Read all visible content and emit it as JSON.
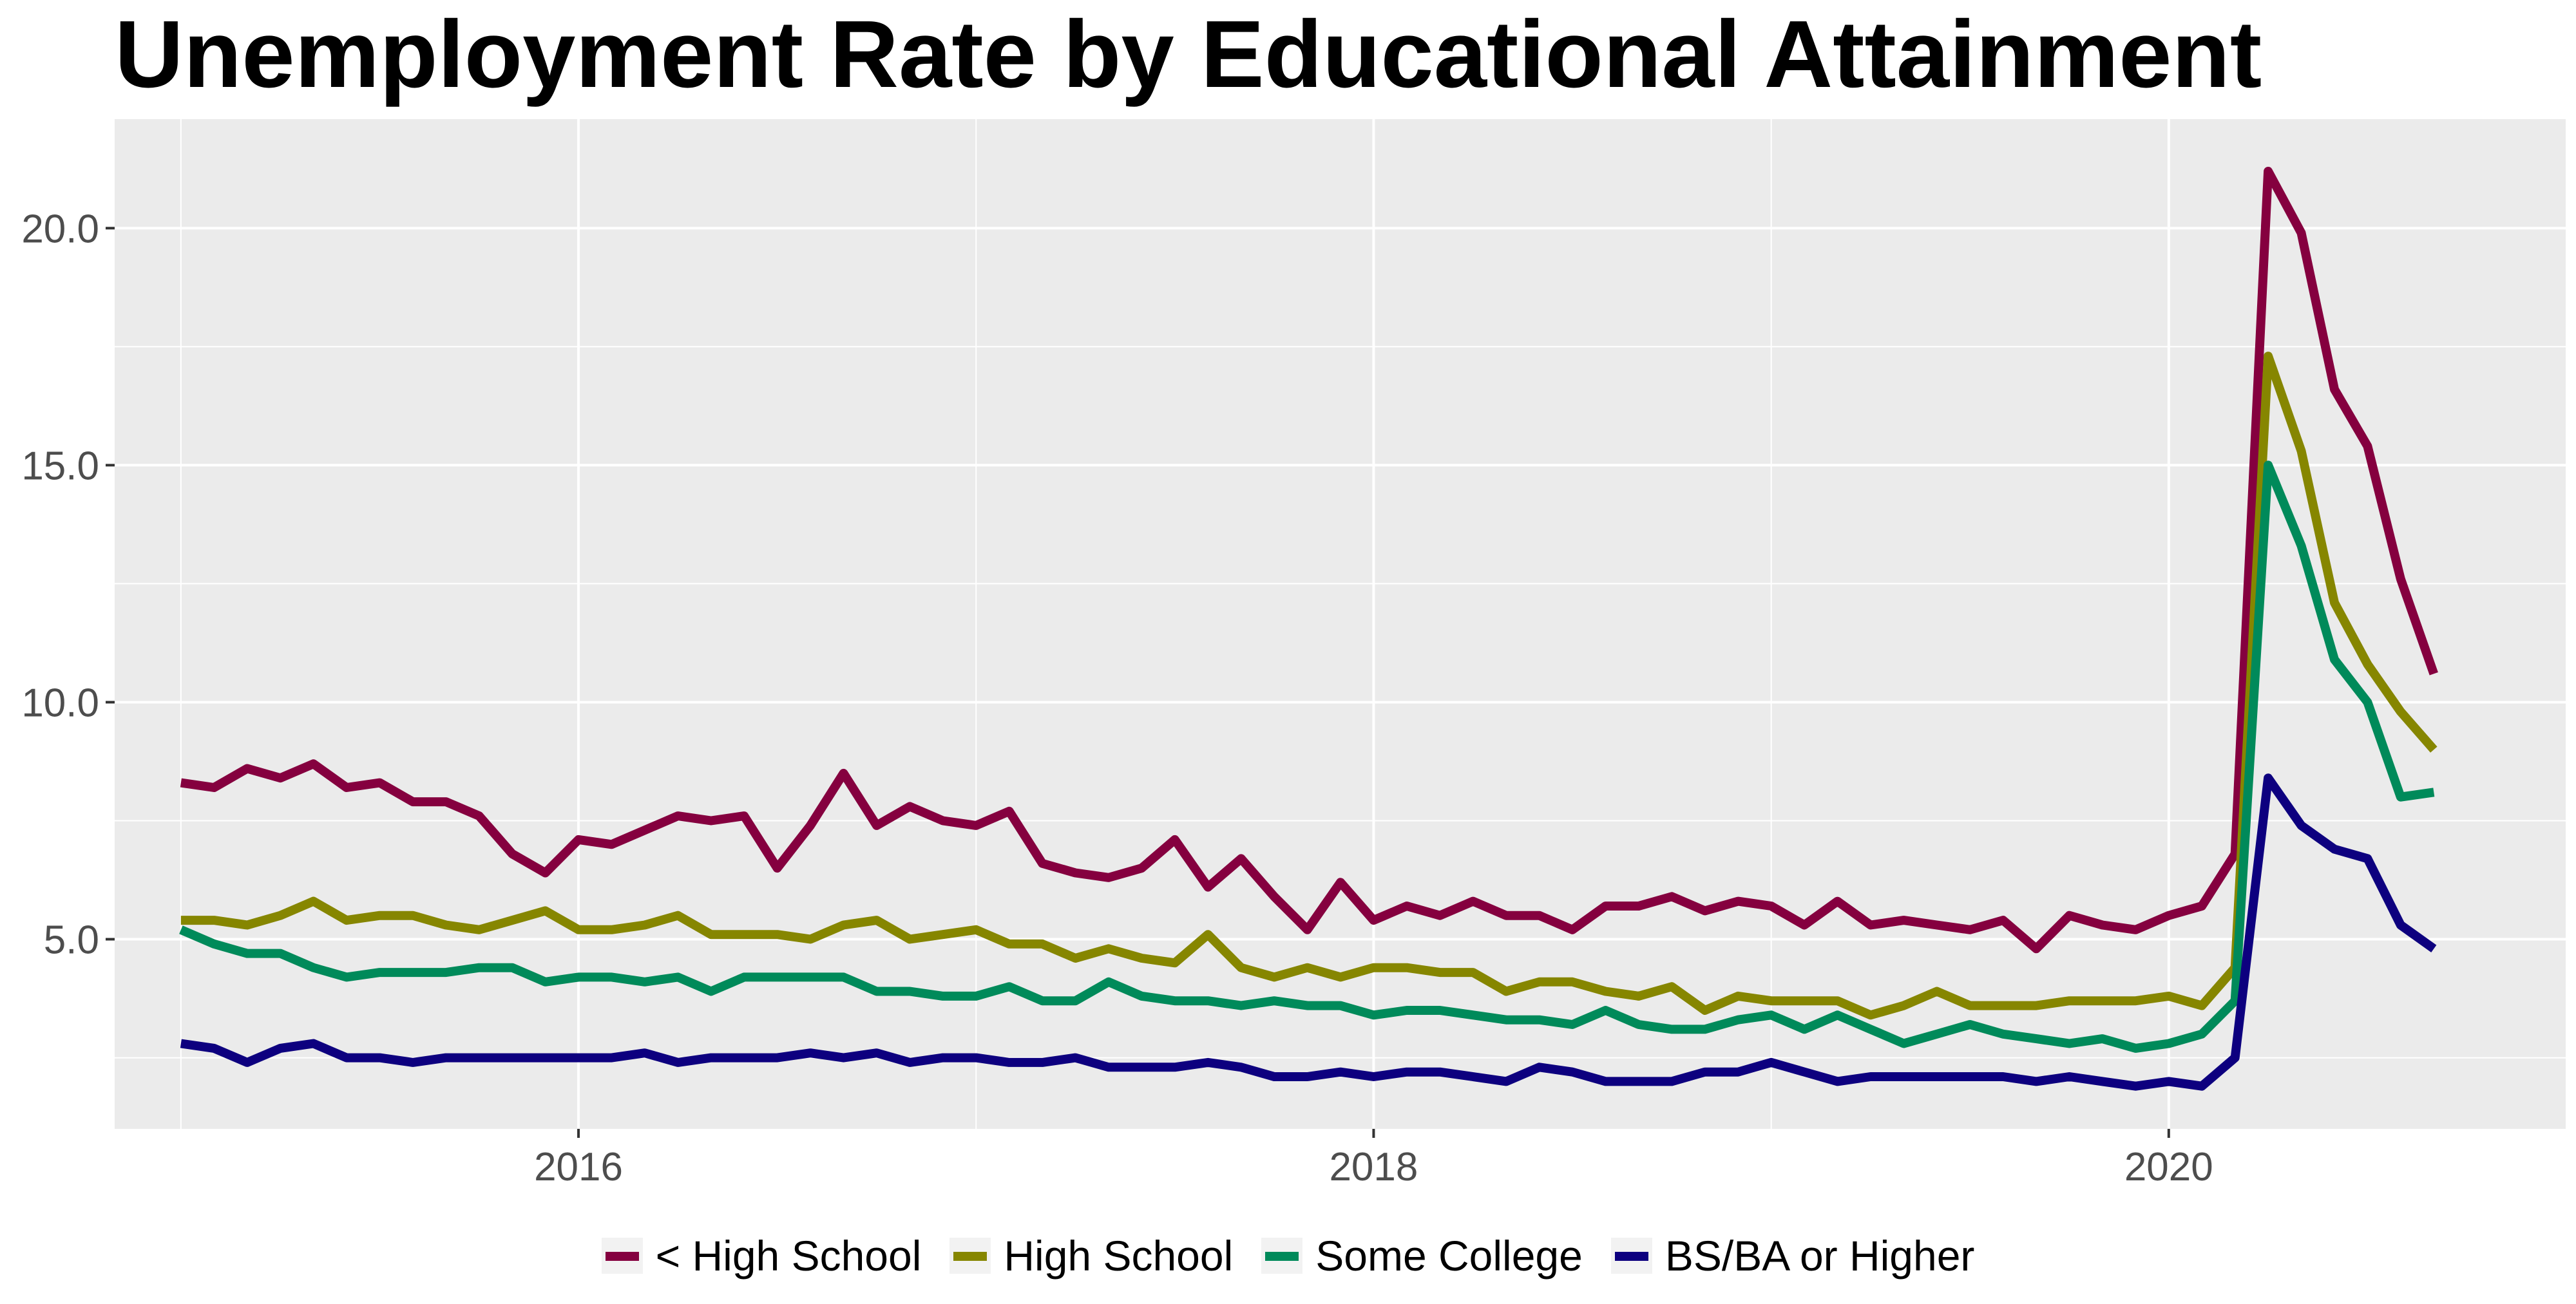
{
  "chart_data": {
    "type": "line",
    "title": "Unemployment Rate by Educational Attainment",
    "xlabel": "",
    "ylabel": "",
    "x_ticks": [
      "2016",
      "2018",
      "2020"
    ],
    "y_ticks": [
      "5.0",
      "10.0",
      "15.0",
      "20.0"
    ],
    "xlim": [
      "2014-11",
      "2021-01"
    ],
    "ylim": [
      1.0,
      22.3
    ],
    "grid": true,
    "legend_position": "bottom",
    "x": [
      "2015-01",
      "2015-02",
      "2015-03",
      "2015-04",
      "2015-05",
      "2015-06",
      "2015-07",
      "2015-08",
      "2015-09",
      "2015-10",
      "2015-11",
      "2015-12",
      "2016-01",
      "2016-02",
      "2016-03",
      "2016-04",
      "2016-05",
      "2016-06",
      "2016-07",
      "2016-08",
      "2016-09",
      "2016-10",
      "2016-11",
      "2016-12",
      "2017-01",
      "2017-02",
      "2017-03",
      "2017-04",
      "2017-05",
      "2017-06",
      "2017-07",
      "2017-08",
      "2017-09",
      "2017-10",
      "2017-11",
      "2017-12",
      "2018-01",
      "2018-02",
      "2018-03",
      "2018-04",
      "2018-05",
      "2018-06",
      "2018-07",
      "2018-08",
      "2018-09",
      "2018-10",
      "2018-11",
      "2018-12",
      "2019-01",
      "2019-02",
      "2019-03",
      "2019-04",
      "2019-05",
      "2019-06",
      "2019-07",
      "2019-08",
      "2019-09",
      "2019-10",
      "2019-11",
      "2019-12",
      "2020-01",
      "2020-02",
      "2020-03",
      "2020-04",
      "2020-05",
      "2020-06",
      "2020-07",
      "2020-08",
      "2020-09",
      "2020-10"
    ],
    "series": [
      {
        "name": "< High School",
        "color": "#85003f",
        "values": [
          8.3,
          8.2,
          8.6,
          8.4,
          8.7,
          8.2,
          8.3,
          7.9,
          7.9,
          7.6,
          6.8,
          6.4,
          7.1,
          7.0,
          7.3,
          7.6,
          7.5,
          7.6,
          6.5,
          7.4,
          8.5,
          7.4,
          7.8,
          7.5,
          7.4,
          7.7,
          6.6,
          6.4,
          6.3,
          6.5,
          7.1,
          6.1,
          6.7,
          5.9,
          5.2,
          6.2,
          5.4,
          5.7,
          5.5,
          5.8,
          5.5,
          5.5,
          5.2,
          5.7,
          5.7,
          5.9,
          5.6,
          5.8,
          5.7,
          5.3,
          5.8,
          5.3,
          5.4,
          5.3,
          5.2,
          5.4,
          4.8,
          5.5,
          5.3,
          5.2,
          5.5,
          5.7,
          6.8,
          21.2,
          19.9,
          16.6,
          15.4,
          12.6,
          10.6,
          null
        ]
      },
      {
        "name": "High School",
        "color": "#868600",
        "values": [
          5.4,
          5.4,
          5.3,
          5.5,
          5.8,
          5.4,
          5.5,
          5.5,
          5.3,
          5.2,
          5.4,
          5.6,
          5.2,
          5.2,
          5.3,
          5.5,
          5.1,
          5.1,
          5.1,
          5.0,
          5.3,
          5.4,
          5.0,
          5.1,
          5.2,
          4.9,
          4.9,
          4.6,
          4.8,
          4.6,
          4.5,
          5.1,
          4.4,
          4.2,
          4.4,
          4.2,
          4.4,
          4.4,
          4.3,
          4.3,
          3.9,
          4.1,
          4.1,
          3.9,
          3.8,
          4.0,
          3.5,
          3.8,
          3.7,
          3.7,
          3.7,
          3.4,
          3.6,
          3.9,
          3.6,
          3.6,
          3.6,
          3.7,
          3.7,
          3.7,
          3.8,
          3.6,
          4.4,
          17.3,
          15.3,
          12.1,
          10.8,
          9.8,
          9.0,
          null
        ]
      },
      {
        "name": "Some College",
        "color": "#008a5a",
        "values": [
          5.2,
          4.9,
          4.7,
          4.7,
          4.4,
          4.2,
          4.3,
          4.3,
          4.3,
          4.4,
          4.4,
          4.1,
          4.2,
          4.2,
          4.1,
          4.2,
          3.9,
          4.2,
          4.2,
          4.2,
          4.2,
          3.9,
          3.9,
          3.8,
          3.8,
          4.0,
          3.7,
          3.7,
          4.1,
          3.8,
          3.7,
          3.7,
          3.6,
          3.7,
          3.6,
          3.6,
          3.4,
          3.5,
          3.5,
          3.4,
          3.3,
          3.3,
          3.2,
          3.5,
          3.2,
          3.1,
          3.1,
          3.3,
          3.4,
          3.1,
          3.4,
          3.1,
          2.8,
          3.0,
          3.2,
          3.0,
          2.9,
          2.8,
          2.9,
          2.7,
          2.8,
          3.0,
          3.7,
          15.0,
          13.3,
          10.9,
          10.0,
          8.0,
          8.1,
          null
        ]
      },
      {
        "name": "BS/BA or Higher",
        "color": "#0d007f",
        "values": [
          2.8,
          2.7,
          2.4,
          2.7,
          2.8,
          2.5,
          2.5,
          2.4,
          2.5,
          2.5,
          2.5,
          2.5,
          2.5,
          2.5,
          2.6,
          2.4,
          2.5,
          2.5,
          2.5,
          2.6,
          2.5,
          2.6,
          2.4,
          2.5,
          2.5,
          2.4,
          2.4,
          2.5,
          2.3,
          2.3,
          2.3,
          2.4,
          2.3,
          2.1,
          2.1,
          2.2,
          2.1,
          2.2,
          2.2,
          2.1,
          2.0,
          2.3,
          2.2,
          2.0,
          2.0,
          2.0,
          2.2,
          2.2,
          2.4,
          2.2,
          2.0,
          2.1,
          2.1,
          2.1,
          2.1,
          2.1,
          2.0,
          2.1,
          2.0,
          1.9,
          2.0,
          1.9,
          2.5,
          8.4,
          7.4,
          6.9,
          6.7,
          5.3,
          4.8,
          null
        ]
      }
    ]
  }
}
